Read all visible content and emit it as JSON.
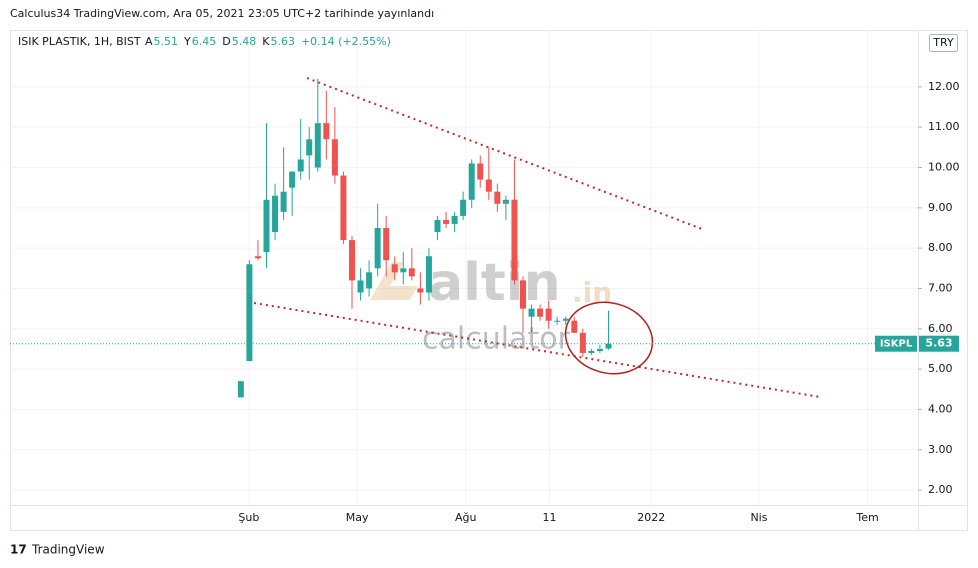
{
  "chart_data": {
    "type": "candlestick",
    "published": "Calculus34 TradingView.com, Ara 05, 2021 23:05 UTC+2 tarihinde yayınlandı",
    "symbol": "ISIK PLASTIK, 1H, BIST",
    "ohlc_header": [
      {
        "label": "A",
        "value": 5.51
      },
      {
        "label": "Y",
        "value": 6.45
      },
      {
        "label": "D",
        "value": 5.48
      },
      {
        "label": "K",
        "value": 5.63
      }
    ],
    "change": "+0.14 (+2.55%)",
    "currency": "TRY",
    "ticker": "ISKPL",
    "last_price": 5.63,
    "watermark": [
      "altin",
      ".in",
      "calculator"
    ],
    "footer": "TradingView",
    "up_color": "#26a69a",
    "down_color": "#ef5350",
    "x": [
      0,
      1,
      2,
      3,
      4,
      5,
      6,
      7,
      8,
      9,
      10,
      11,
      12,
      13,
      14,
      15,
      16,
      17,
      18,
      19,
      20,
      21,
      22,
      23,
      24,
      25,
      26,
      27,
      28,
      29,
      30,
      31,
      32,
      33,
      34,
      35,
      36,
      37,
      38,
      39,
      40,
      41,
      42,
      43
    ],
    "open": [
      4.3,
      5.2,
      7.8,
      7.9,
      8.4,
      8.9,
      9.5,
      9.9,
      10.3,
      10.0,
      11.1,
      10.7,
      9.8,
      8.2,
      6.9,
      7.0,
      7.5,
      8.5,
      7.6,
      7.4,
      7.5,
      7.0,
      6.9,
      8.4,
      8.7,
      8.6,
      8.8,
      9.2,
      10.1,
      9.7,
      9.4,
      9.1,
      9.2,
      7.2,
      6.3,
      6.5,
      6.5,
      6.2,
      6.2,
      6.2,
      5.9,
      5.4,
      5.45,
      5.51
    ],
    "high": [
      4.7,
      7.7,
      8.2,
      11.1,
      9.6,
      10.5,
      9.8,
      11.2,
      11.0,
      12.2,
      11.9,
      11.5,
      9.9,
      8.3,
      7.5,
      7.7,
      9.1,
      8.8,
      7.8,
      7.9,
      8.0,
      7.4,
      8.0,
      8.8,
      8.9,
      8.9,
      9.4,
      10.2,
      10.3,
      10.5,
      9.6,
      9.3,
      10.2,
      7.3,
      6.6,
      6.6,
      6.7,
      6.3,
      6.3,
      6.3,
      6.0,
      5.5,
      5.6,
      6.45
    ],
    "low": [
      4.3,
      5.2,
      7.7,
      7.5,
      8.2,
      8.7,
      8.8,
      9.7,
      9.7,
      9.9,
      10.2,
      9.6,
      8.1,
      6.5,
      6.7,
      6.8,
      7.3,
      7.3,
      7.2,
      7.1,
      7.2,
      6.6,
      6.7,
      8.2,
      8.5,
      8.4,
      8.7,
      9.0,
      9.5,
      9.2,
      8.9,
      8.7,
      7.1,
      5.9,
      5.9,
      6.2,
      6.0,
      6.1,
      6.1,
      5.9,
      5.3,
      5.35,
      5.4,
      5.48
    ],
    "close": [
      4.7,
      7.6,
      7.75,
      9.2,
      9.3,
      9.4,
      9.9,
      10.2,
      10.7,
      11.1,
      10.7,
      9.8,
      8.2,
      7.2,
      7.2,
      7.4,
      8.5,
      7.7,
      7.4,
      7.5,
      7.3,
      6.9,
      7.8,
      8.7,
      8.6,
      8.8,
      9.2,
      10.1,
      9.7,
      9.4,
      9.1,
      9.2,
      7.2,
      6.5,
      6.5,
      6.3,
      6.2,
      6.2,
      6.25,
      5.9,
      5.4,
      5.45,
      5.5,
      5.63
    ],
    "xlim": [
      -27.0,
      79.2
    ],
    "xticks": [
      {
        "value": 0.94,
        "label": "Şub"
      },
      {
        "value": 13.6,
        "label": "May"
      },
      {
        "value": 26.3,
        "label": "Ağu"
      },
      {
        "value": 36.1,
        "label": "11"
      },
      {
        "value": 48.0,
        "label": "2022"
      },
      {
        "value": 60.6,
        "label": "Nis"
      },
      {
        "value": 73.3,
        "label": "Tem"
      }
    ],
    "ylim": [
      1.63,
      13.41
    ],
    "yticks": [
      {
        "value": 2,
        "label": "2.00"
      },
      {
        "value": 3,
        "label": "3.00"
      },
      {
        "value": 4,
        "label": "4.00"
      },
      {
        "value": 5,
        "label": "5.00"
      },
      {
        "value": 6,
        "label": "6.00"
      },
      {
        "value": 7,
        "label": "7.00"
      },
      {
        "value": 8,
        "label": "8.00"
      },
      {
        "value": 9,
        "label": "9.00"
      },
      {
        "value": 10,
        "label": "10.00"
      },
      {
        "value": 11,
        "label": "11.00"
      },
      {
        "value": 12,
        "label": "12.00"
      }
    ],
    "grid": true
  }
}
